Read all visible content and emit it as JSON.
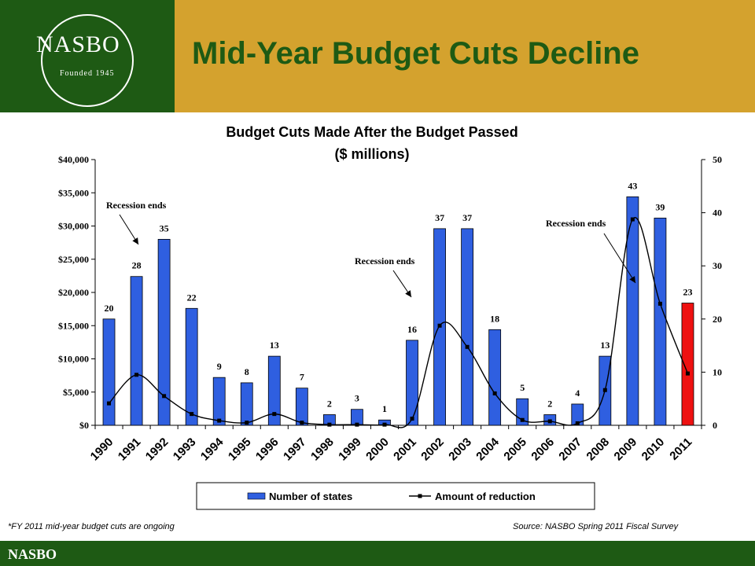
{
  "header": {
    "title": "Mid-Year Budget Cuts Decline",
    "logo_text": "NASBO",
    "logo_tagline": "Founded 1945"
  },
  "footer": {
    "brand": "NASBO",
    "note_left": "*FY 2011 mid-year budget cuts are ongoing",
    "note_right": "Source: NASBO Spring 2011 Fiscal Survey"
  },
  "colors": {
    "green": "#1e5a14",
    "gold": "#d4a22e",
    "bar_blue": "#2f5fe0",
    "bar_red": "#ee1111"
  },
  "chart_data": {
    "type": "bar",
    "title": "Budget Cuts Made After the Budget Passed",
    "subtitle": "($ millions)",
    "categories": [
      "1990",
      "1991",
      "1992",
      "1993",
      "1994",
      "1995",
      "1996",
      "1997",
      "1998",
      "1999",
      "2000",
      "2001",
      "2002",
      "2003",
      "2004",
      "2005",
      "2006",
      "2007",
      "2008",
      "2009",
      "2010",
      "2011"
    ],
    "series": [
      {
        "name": "Number of states",
        "type": "bar",
        "axis": "right",
        "values": [
          20,
          28,
          35,
          22,
          9,
          8,
          13,
          7,
          2,
          3,
          1,
          16,
          37,
          37,
          18,
          5,
          2,
          4,
          13,
          43,
          39,
          23
        ],
        "labels": [
          "20",
          "28",
          "35",
          "22",
          "9",
          "8",
          "13",
          "7",
          "2",
          "3",
          "1",
          "16",
          "37",
          "37",
          "18",
          "5",
          "2",
          "4",
          "13",
          "43",
          "39",
          "23"
        ],
        "highlight_last": true
      },
      {
        "name": "Amount of reduction",
        "type": "line",
        "axis": "left",
        "values": [
          3300,
          7600,
          4400,
          1700,
          700,
          400,
          1700,
          400,
          100,
          100,
          100,
          1000,
          15000,
          11800,
          4800,
          800,
          600,
          300,
          5300,
          31000,
          18300,
          7800
        ]
      }
    ],
    "yleft": {
      "ticks": [
        "$0",
        "$5,000",
        "$10,000",
        "$15,000",
        "$20,000",
        "$25,000",
        "$30,000",
        "$35,000",
        "$40,000"
      ],
      "ylim": [
        0,
        40000
      ]
    },
    "yright": {
      "ticks": [
        "0",
        "10",
        "20",
        "30",
        "40",
        "50"
      ],
      "ylim": [
        0,
        50
      ]
    },
    "annotations": [
      "Recession ends",
      "Recession ends",
      "Recession ends"
    ],
    "legend": {
      "position": "bottom",
      "items": [
        "Number of states",
        "Amount of reduction"
      ]
    },
    "grid": false
  }
}
